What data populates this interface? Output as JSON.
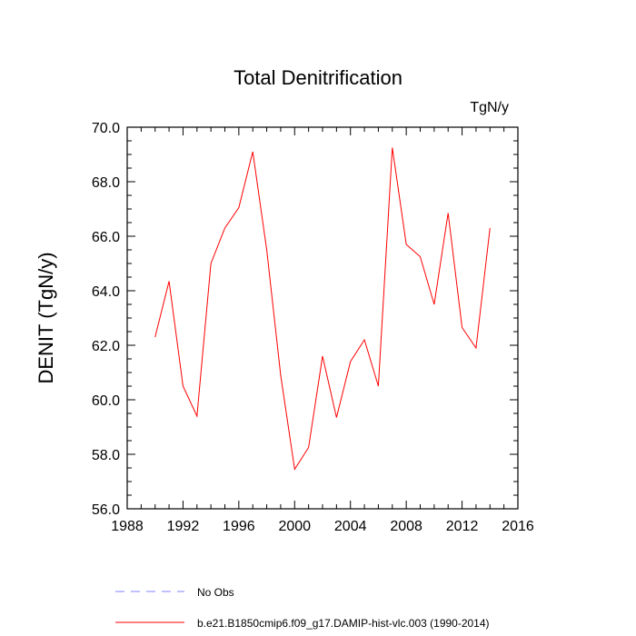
{
  "chart_data": {
    "type": "line",
    "title": "Total Denitrification",
    "units_label": "TgN/y",
    "ylabel": "DENIT  (TgN/y)",
    "xlabel": "",
    "xlim": [
      1988,
      2016
    ],
    "ylim": [
      56,
      70
    ],
    "x_ticks": [
      1988,
      1992,
      1996,
      2000,
      2004,
      2008,
      2012,
      2016
    ],
    "x_tick_labels": [
      "1988",
      "1992",
      "1996",
      "2000",
      "2004",
      "2008",
      "2012",
      "2016"
    ],
    "y_ticks": [
      56,
      58,
      60,
      62,
      64,
      66,
      68,
      70
    ],
    "y_tick_labels": [
      "56.0",
      "58.0",
      "60.0",
      "62.0",
      "64.0",
      "66.0",
      "68.0",
      "70.0"
    ],
    "grid": false,
    "legend_position": "bottom",
    "series": [
      {
        "name": "b.e21.B1850cmip6.f09_g17.DAMIP-hist-vlc.003 (1990-2014)",
        "color": "#ff0000",
        "style": "solid",
        "x": [
          1990,
          1991,
          1992,
          1993,
          1994,
          1995,
          1996,
          1997,
          1998,
          1999,
          2000,
          2001,
          2002,
          2003,
          2004,
          2005,
          2006,
          2007,
          2008,
          2009,
          2010,
          2011,
          2012,
          2013,
          2014
        ],
        "y": [
          62.3,
          64.35,
          60.5,
          59.4,
          65.0,
          66.3,
          67.05,
          69.1,
          65.5,
          60.9,
          57.45,
          58.25,
          61.6,
          59.35,
          61.4,
          62.2,
          60.5,
          69.25,
          65.7,
          65.25,
          63.5,
          66.85,
          62.65,
          61.9,
          66.3
        ]
      }
    ],
    "legend": [
      {
        "label": "No Obs",
        "color": "#8080ff",
        "style": "dashed"
      },
      {
        "label": "b.e21.B1850cmip6.f09_g17.DAMIP-hist-vlc.003 (1990-2014)",
        "color": "#ff0000",
        "style": "solid"
      }
    ]
  }
}
